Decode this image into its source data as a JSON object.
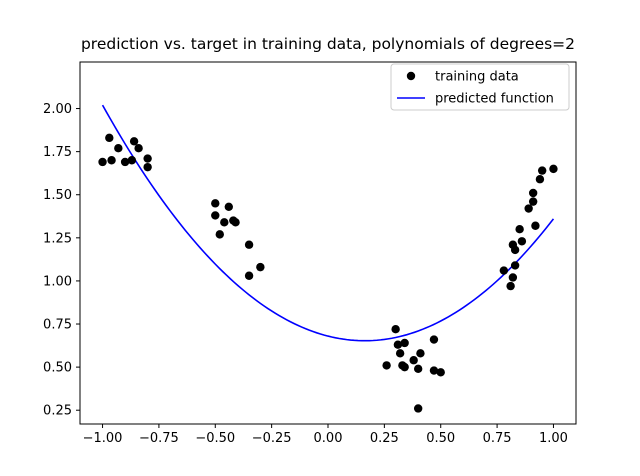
{
  "chart_data": {
    "type": "scatter",
    "title": "prediction vs. target in training data,  polynomials of degrees=2",
    "xlabel": "",
    "ylabel": "",
    "xlim": [
      -1.1,
      1.1
    ],
    "ylim": [
      0.17,
      2.27
    ],
    "x_ticks": [
      -1.0,
      -0.75,
      -0.5,
      -0.25,
      0.0,
      0.25,
      0.5,
      0.75,
      1.0
    ],
    "x_tick_labels": [
      "−1.00",
      "−0.75",
      "−0.50",
      "−0.25",
      "0.00",
      "0.25",
      "0.50",
      "0.75",
      "1.00"
    ],
    "y_ticks": [
      0.25,
      0.5,
      0.75,
      1.0,
      1.25,
      1.5,
      1.75,
      2.0
    ],
    "y_tick_labels": [
      "0.25",
      "0.50",
      "0.75",
      "1.00",
      "1.25",
      "1.50",
      "1.75",
      "2.00"
    ],
    "grid": false,
    "legend_position": "top-right",
    "series": [
      {
        "name": "training data",
        "kind": "scatter",
        "color": "#000000",
        "points": [
          [
            -1.0,
            1.69
          ],
          [
            -0.97,
            1.83
          ],
          [
            -0.96,
            1.7
          ],
          [
            -0.93,
            1.77
          ],
          [
            -0.9,
            1.69
          ],
          [
            -0.87,
            1.7
          ],
          [
            -0.86,
            1.81
          ],
          [
            -0.84,
            1.77
          ],
          [
            -0.8,
            1.71
          ],
          [
            -0.8,
            1.66
          ],
          [
            -0.5,
            1.45
          ],
          [
            -0.5,
            1.38
          ],
          [
            -0.48,
            1.27
          ],
          [
            -0.46,
            1.34
          ],
          [
            -0.44,
            1.43
          ],
          [
            -0.42,
            1.35
          ],
          [
            -0.41,
            1.34
          ],
          [
            -0.35,
            1.21
          ],
          [
            -0.35,
            1.03
          ],
          [
            -0.3,
            1.08
          ],
          [
            0.26,
            0.51
          ],
          [
            0.3,
            0.72
          ],
          [
            0.31,
            0.63
          ],
          [
            0.32,
            0.58
          ],
          [
            0.33,
            0.51
          ],
          [
            0.34,
            0.5
          ],
          [
            0.34,
            0.64
          ],
          [
            0.38,
            0.54
          ],
          [
            0.4,
            0.49
          ],
          [
            0.41,
            0.58
          ],
          [
            0.4,
            0.26
          ],
          [
            0.47,
            0.66
          ],
          [
            0.47,
            0.48
          ],
          [
            0.5,
            0.47
          ],
          [
            0.78,
            1.06
          ],
          [
            0.81,
            0.97
          ],
          [
            0.82,
            1.21
          ],
          [
            0.82,
            1.02
          ],
          [
            0.83,
            1.09
          ],
          [
            0.83,
            1.18
          ],
          [
            0.85,
            1.3
          ],
          [
            0.86,
            1.23
          ],
          [
            0.89,
            1.42
          ],
          [
            0.91,
            1.51
          ],
          [
            0.91,
            1.46
          ],
          [
            0.92,
            1.32
          ],
          [
            0.94,
            1.59
          ],
          [
            0.95,
            1.64
          ],
          [
            1.0,
            1.65
          ]
        ]
      },
      {
        "name": "predicted function",
        "kind": "line",
        "color": "#0000ff",
        "fit": "quadratic",
        "coefficients": {
          "a": 1.01,
          "b": -0.33,
          "c": 0.68
        },
        "x_range": [
          -1.0,
          1.0
        ]
      }
    ]
  }
}
